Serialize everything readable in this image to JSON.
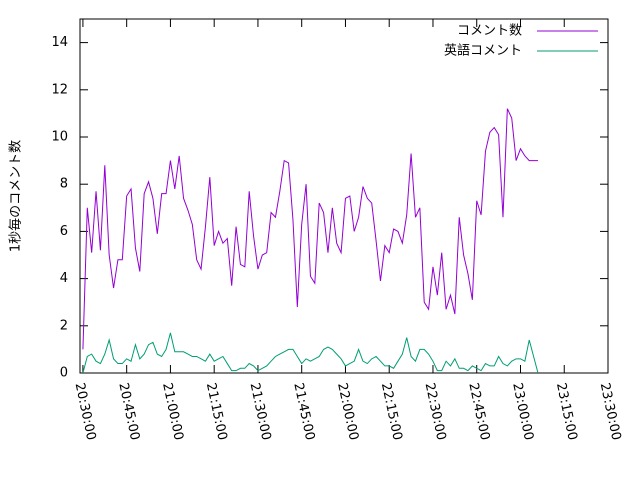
{
  "chart_data": {
    "type": "line",
    "y_label": "1秒毎のコメント数",
    "x": [
      "20:30:00",
      "20:31:30",
      "20:33:00",
      "20:34:30",
      "20:36:00",
      "20:37:30",
      "20:39:00",
      "20:40:30",
      "20:42:00",
      "20:43:30",
      "20:45:00",
      "20:46:30",
      "20:48:00",
      "20:49:30",
      "20:51:00",
      "20:52:30",
      "20:54:00",
      "20:55:30",
      "20:57:00",
      "20:58:30",
      "21:00:00",
      "21:01:30",
      "21:03:00",
      "21:04:30",
      "21:06:00",
      "21:07:30",
      "21:09:00",
      "21:10:30",
      "21:12:00",
      "21:13:30",
      "21:15:00",
      "21:16:30",
      "21:18:00",
      "21:19:30",
      "21:21:00",
      "21:22:30",
      "21:24:00",
      "21:25:30",
      "21:27:00",
      "21:28:30",
      "21:30:00",
      "21:31:30",
      "21:33:00",
      "21:34:30",
      "21:36:00",
      "21:37:30",
      "21:39:00",
      "21:40:30",
      "21:42:00",
      "21:43:30",
      "21:45:00",
      "21:46:30",
      "21:48:00",
      "21:49:30",
      "21:51:00",
      "21:52:30",
      "21:54:00",
      "21:55:30",
      "21:57:00",
      "21:58:30",
      "22:00:00",
      "22:01:30",
      "22:03:00",
      "22:04:30",
      "22:06:00",
      "22:07:30",
      "22:09:00",
      "22:10:30",
      "22:12:00",
      "22:13:30",
      "22:15:00",
      "22:16:30",
      "22:18:00",
      "22:19:30",
      "22:21:00",
      "22:22:30",
      "22:24:00",
      "22:25:30",
      "22:27:00",
      "22:28:30",
      "22:30:00",
      "22:31:30",
      "22:33:00",
      "22:34:30",
      "22:36:00",
      "22:37:30",
      "22:39:00",
      "22:40:30",
      "22:42:00",
      "22:43:30",
      "22:45:00",
      "22:46:30",
      "22:48:00",
      "22:49:30",
      "22:51:00",
      "22:52:30",
      "22:54:00",
      "22:55:30",
      "22:57:00",
      "22:58:30",
      "23:00:00",
      "23:01:30",
      "23:03:00",
      "23:04:30",
      "23:06:00"
    ],
    "series": [
      {
        "name": "コメント数",
        "color": "#9400d3",
        "values": [
          1.0,
          7.0,
          5.1,
          7.7,
          5.2,
          8.8,
          5.0,
          3.6,
          4.8,
          4.8,
          7.5,
          7.8,
          5.3,
          4.3,
          7.6,
          8.1,
          7.4,
          5.9,
          7.6,
          7.6,
          9.0,
          7.8,
          9.2,
          7.4,
          6.9,
          6.3,
          4.8,
          4.4,
          6.2,
          8.3,
          5.4,
          6.0,
          5.5,
          5.7,
          3.7,
          6.2,
          4.6,
          4.5,
          7.7,
          5.8,
          4.4,
          5.0,
          5.1,
          6.8,
          6.6,
          7.7,
          9.0,
          8.9,
          6.5,
          2.8,
          6.3,
          8.0,
          4.1,
          3.8,
          7.2,
          6.8,
          5.1,
          7.0,
          5.5,
          5.1,
          7.4,
          7.5,
          6.0,
          6.6,
          7.9,
          7.4,
          7.2,
          5.6,
          3.9,
          5.4,
          5.1,
          6.1,
          6.0,
          5.5,
          6.7,
          9.3,
          6.6,
          7.0,
          3.0,
          2.7,
          4.5,
          3.3,
          5.1,
          2.7,
          3.3,
          2.5,
          6.6,
          5.0,
          4.2,
          3.1,
          7.3,
          6.7,
          9.4,
          10.2,
          10.4,
          10.1,
          6.6,
          11.2,
          10.8,
          9.0,
          9.5,
          9.2,
          9.0,
          9.0,
          9.0
        ]
      },
      {
        "name": "英語コメント",
        "color": "#009e73",
        "values": [
          0.0,
          0.7,
          0.8,
          0.5,
          0.4,
          0.8,
          1.4,
          0.6,
          0.4,
          0.4,
          0.6,
          0.5,
          1.2,
          0.6,
          0.8,
          1.2,
          1.3,
          0.8,
          0.7,
          1.0,
          1.7,
          0.9,
          0.9,
          0.9,
          0.8,
          0.7,
          0.7,
          0.6,
          0.5,
          0.8,
          0.5,
          0.6,
          0.7,
          0.4,
          0.1,
          0.1,
          0.2,
          0.2,
          0.4,
          0.3,
          0.1,
          0.2,
          0.3,
          0.5,
          0.7,
          0.8,
          0.9,
          1.0,
          1.0,
          0.7,
          0.4,
          0.6,
          0.5,
          0.6,
          0.7,
          1.0,
          1.1,
          1.0,
          0.8,
          0.6,
          0.3,
          0.4,
          0.5,
          1.0,
          0.5,
          0.4,
          0.6,
          0.7,
          0.5,
          0.3,
          0.3,
          0.2,
          0.5,
          0.8,
          1.5,
          0.7,
          0.5,
          1.0,
          1.0,
          0.8,
          0.5,
          0.1,
          0.1,
          0.5,
          0.3,
          0.6,
          0.2,
          0.2,
          0.1,
          0.3,
          0.2,
          0.1,
          0.4,
          0.3,
          0.3,
          0.7,
          0.4,
          0.3,
          0.5,
          0.6,
          0.6,
          0.5,
          1.4,
          0.7,
          0.0
        ]
      }
    ],
    "xlim": [
      "20:29:00",
      "23:30:00"
    ],
    "xticks": [
      "20:30:00",
      "20:45:00",
      "21:00:00",
      "21:15:00",
      "21:30:00",
      "21:45:00",
      "22:00:00",
      "22:15:00",
      "22:30:00",
      "22:45:00",
      "23:00:00",
      "23:15:00",
      "23:30:00"
    ],
    "ylim": [
      0,
      15
    ],
    "yticks": [
      0,
      2,
      4,
      6,
      8,
      10,
      12,
      14
    ],
    "grid": false,
    "legend": "top-right"
  }
}
